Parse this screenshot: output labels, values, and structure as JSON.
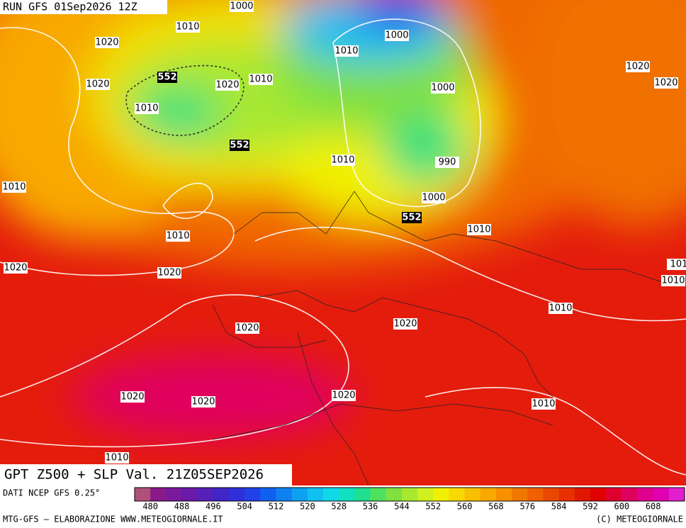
{
  "header": {
    "run": "RUN GFS 01Sep2026 12Z"
  },
  "map": {
    "isobar_labels": [
      "1000",
      "1010",
      "1020",
      "1020",
      "1020",
      "1010",
      "1010",
      "1000",
      "1010",
      "1000",
      "1020",
      "1020",
      "1010",
      "990",
      "1010",
      "1000",
      "1010",
      "1010",
      "1020",
      "1020",
      "101",
      "1010",
      "1010",
      "1020",
      "1020",
      "1020",
      "1020",
      "1020",
      "1010",
      "1010"
    ],
    "z500_labels": [
      "552",
      "552",
      "552"
    ]
  },
  "title": "GPT Z500 + SLP Val. 21Z05SEP2026",
  "colorbar": {
    "source": "DATI NCEP GFS 0.25°",
    "range": [
      476,
      616
    ],
    "ticks": [
      480,
      488,
      496,
      504,
      512,
      520,
      528,
      536,
      544,
      552,
      560,
      568,
      576,
      584,
      592,
      600,
      608
    ],
    "colors": [
      "#b0507a",
      "#8a1a8a",
      "#7a1a9a",
      "#6a1aa8",
      "#5520b8",
      "#4025c8",
      "#3030d8",
      "#2040e8",
      "#1060f0",
      "#1080f0",
      "#10a0f0",
      "#10c0f0",
      "#10d8e8",
      "#10e0c0",
      "#20e090",
      "#50e060",
      "#80e040",
      "#a8e830",
      "#d0f020",
      "#f0f000",
      "#f8d800",
      "#f8c000",
      "#f8a800",
      "#f89000",
      "#f07800",
      "#f06000",
      "#e84800",
      "#e83000",
      "#e01800",
      "#e00000",
      "#e00030",
      "#e00060",
      "#e00090",
      "#e000b0",
      "#e020d0"
    ]
  },
  "footer": {
    "left": "MTG-GFS — ELABORAZIONE WWW.METEOGIORNALE.IT",
    "right": "(C) METEOGIORNALE"
  }
}
